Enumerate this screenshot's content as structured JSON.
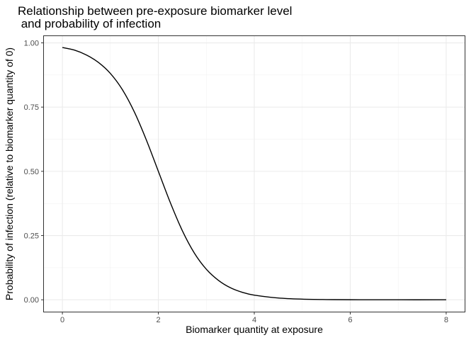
{
  "chart_data": {
    "type": "line",
    "title_lines": [
      "Relationship between pre-exposure biomarker level",
      " and probability of infection"
    ],
    "xlabel": "Biomarker quantity at exposure",
    "ylabel": "Probability of infection (relative to biomarker quantity of 0)",
    "xlim": [
      -0.4,
      8.4
    ],
    "ylim": [
      -0.049,
      1.029
    ],
    "x_ticks": [
      0,
      2,
      4,
      6,
      8
    ],
    "y_ticks": [
      0.0,
      0.25,
      0.5,
      0.75,
      1.0
    ],
    "x_tick_labels": [
      "0",
      "2",
      "4",
      "6",
      "8"
    ],
    "y_tick_labels": [
      "0.00",
      "0.25",
      "0.50",
      "0.75",
      "1.00"
    ],
    "x_minor_ticks": [
      1,
      3,
      5,
      7
    ],
    "y_minor_ticks": [
      0.125,
      0.375,
      0.625,
      0.875
    ],
    "grid": true,
    "theme": "bw",
    "series": [
      {
        "color": "#000000",
        "x": [
          0,
          0.25,
          0.5,
          0.75,
          1.0,
          1.25,
          1.5,
          1.75,
          2.0,
          2.25,
          2.5,
          2.75,
          3.0,
          3.25,
          3.5,
          3.75,
          4.0,
          4.5,
          5.0,
          5.5,
          6.0,
          7.0,
          8.0
        ],
        "y": [
          0.982,
          0.972,
          0.953,
          0.924,
          0.881,
          0.818,
          0.731,
          0.622,
          0.5,
          0.378,
          0.269,
          0.182,
          0.119,
          0.076,
          0.047,
          0.029,
          0.018,
          0.007,
          0.0025,
          0.0009,
          0.0003,
          0.0,
          0.0
        ]
      }
    ]
  }
}
